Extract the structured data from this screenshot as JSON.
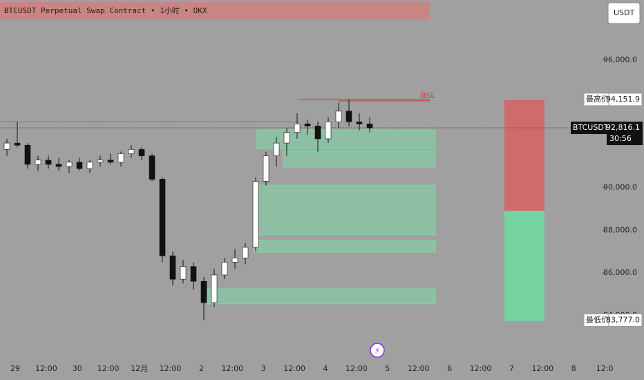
{
  "header": {
    "title": "BTCUSDT Perpetual Swap Contract • 1小时 • OKX",
    "currency_button": "USDT"
  },
  "chart_data": {
    "type": "candlestick",
    "open": [
      91800,
      92100,
      92000,
      91100,
      91300,
      91100,
      91000,
      91200,
      90900,
      91200,
      91300,
      91200,
      91600,
      91800,
      91500,
      90400,
      86800,
      85700,
      86300,
      85600,
      84600,
      85900,
      86500,
      86700,
      87200,
      90300,
      91500,
      92100,
      92600,
      93000,
      92900,
      92300,
      93100,
      93600,
      93100,
      93000
    ],
    "high": [
      92300,
      93100,
      92100,
      91500,
      91500,
      91400,
      91300,
      91400,
      91300,
      91500,
      91600,
      91700,
      92000,
      91900,
      91600,
      90500,
      87000,
      86600,
      86500,
      85800,
      86200,
      86700,
      87100,
      87400,
      90500,
      91700,
      92400,
      92800,
      93500,
      93200,
      93100,
      93300,
      94000,
      94151.9,
      93500,
      93300
    ],
    "low": [
      91500,
      91900,
      90900,
      90800,
      90900,
      90800,
      90700,
      90800,
      90700,
      91000,
      91100,
      91000,
      91400,
      91300,
      90300,
      86500,
      85400,
      85500,
      85200,
      83777,
      84400,
      85700,
      86200,
      86400,
      87000,
      90100,
      91000,
      91500,
      92300,
      92500,
      91700,
      92100,
      92800,
      92900,
      92700,
      92600
    ],
    "close": [
      92100,
      92000,
      91100,
      91300,
      91100,
      91000,
      91200,
      90900,
      91200,
      91300,
      91200,
      91600,
      91800,
      91500,
      90400,
      86800,
      85700,
      86300,
      85600,
      84600,
      85900,
      86500,
      86700,
      87200,
      90300,
      91500,
      92100,
      92600,
      93000,
      92900,
      92300,
      93100,
      93600,
      93100,
      93000,
      92816.1
    ],
    "up_color": "#ffffff",
    "down_color": "#111111",
    "ylim": [
      82100,
      98825
    ],
    "yticks": [
      {
        "value": 96000,
        "label": "96,000.0"
      },
      {
        "value": 90000,
        "label": "90,000.0"
      },
      {
        "value": 88000,
        "label": "88,000.0"
      },
      {
        "value": 86000,
        "label": "86,000.0"
      },
      {
        "value": 84000,
        "label": "84,000.0"
      }
    ],
    "x_labels": [
      "29",
      "12:00",
      "30",
      "12:00",
      "12月",
      "12:00",
      "2",
      "12:00",
      "3",
      "12:00",
      "4",
      "12:00",
      "5",
      "12:00",
      "6",
      "12:00",
      "7",
      "12:00",
      "8",
      "12:0"
    ],
    "zones": [
      {
        "high": 92720,
        "low": 91840
      },
      {
        "high": 91750,
        "low": 90970
      },
      {
        "high": 90120,
        "low": 87790
      },
      {
        "high": 87530,
        "low": 86970
      },
      {
        "high": 85250,
        "low": 84540
      }
    ],
    "zone_color": "#7fd8a8",
    "stop_zone": {
      "high": 94120,
      "low": 88920,
      "color": "#cf6b6b"
    },
    "target_zone": {
      "high": 88920,
      "low": 83730,
      "color": "#74d3a0"
    },
    "liquidity_label": "BSL",
    "high_marker": {
      "label": "最高价",
      "price": {
        "value": 94151.9,
        "label": "94,151.9"
      }
    },
    "last_marker": {
      "symbol": "BTCUSDT.P",
      "price": {
        "value": 92816.1,
        "label": "92,816.1"
      },
      "countdown": "30:56"
    },
    "low_marker": {
      "label": "最低价",
      "price": {
        "value": 83777.0,
        "label": "83,777.0"
      }
    }
  }
}
